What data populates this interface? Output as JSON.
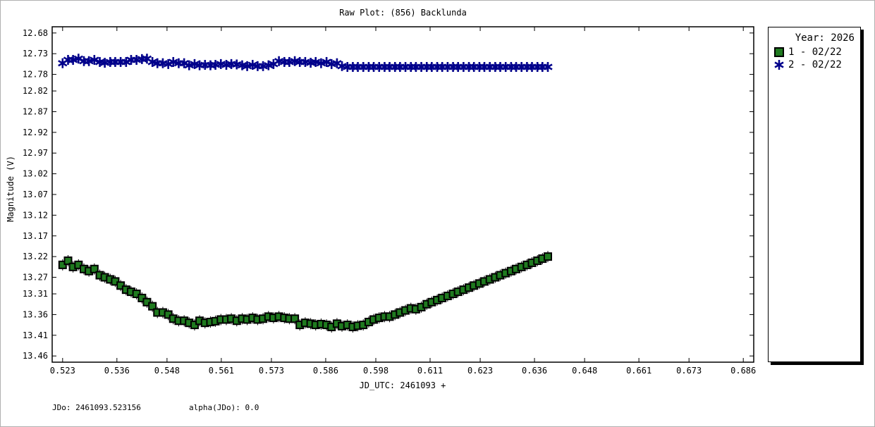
{
  "title": "Raw Plot: (856) Backlunda",
  "footer": {
    "jdo_label": "JDo: 2461093.523156",
    "alpha_label": "alpha(JDo): 0.0"
  },
  "legend": {
    "title": "Year: 2026",
    "entries": [
      "1 - 02/22",
      "2 - 02/22"
    ]
  },
  "chart_data": {
    "type": "scatter",
    "title": "Raw Plot: (856) Backlunda",
    "xlabel": "JD_UTC: 2461093 +",
    "ylabel": "Magnitude (V)",
    "xlim": [
      0.5205,
      0.6885
    ],
    "ylim": [
      12.665,
      13.475
    ],
    "y_inverted": true,
    "x_ticks": [
      "0.523",
      "0.536",
      "0.548",
      "0.561",
      "0.573",
      "0.586",
      "0.598",
      "0.611",
      "0.623",
      "0.636",
      "0.648",
      "0.661",
      "0.673",
      "0.686"
    ],
    "y_ticks": [
      "12.68",
      "12.73",
      "12.78",
      "12.82",
      "12.87",
      "12.92",
      "12.97",
      "13.02",
      "13.07",
      "13.12",
      "13.17",
      "13.22",
      "13.27",
      "13.31",
      "13.36",
      "13.41",
      "13.46"
    ],
    "legend_position": "right",
    "series": [
      {
        "name": "1 - 02/22",
        "marker": "square",
        "color": "#1f7a1f",
        "x": [
          0.523,
          0.5243,
          0.5255,
          0.5268,
          0.5281,
          0.5293,
          0.5306,
          0.5319,
          0.5331,
          0.5344,
          0.5356,
          0.5369,
          0.5382,
          0.5394,
          0.5407,
          0.542,
          0.5432,
          0.5445,
          0.5457,
          0.547,
          0.5483,
          0.5495,
          0.5508,
          0.5521,
          0.5533,
          0.5546,
          0.5558,
          0.5571,
          0.5584,
          0.5596,
          0.5609,
          0.5622,
          0.5634,
          0.5647,
          0.566,
          0.5672,
          0.5685,
          0.5697,
          0.571,
          0.5723,
          0.5735,
          0.5748,
          0.5761,
          0.5773,
          0.5786,
          0.5798,
          0.5811,
          0.5824,
          0.5836,
          0.5849,
          0.5862,
          0.5874,
          0.5887,
          0.5899,
          0.5912,
          0.5925,
          0.5937,
          0.595,
          0.5963,
          0.5975,
          0.5988,
          0.6001,
          0.6013,
          0.6026,
          0.6038,
          0.6051,
          0.6064,
          0.6076,
          0.6089,
          0.6102,
          0.6114,
          0.6127,
          0.6139,
          0.6152,
          0.6165,
          0.6177,
          0.619,
          0.6203,
          0.6215,
          0.6228,
          0.624,
          0.6253,
          0.6266,
          0.6278,
          0.6291,
          0.6304,
          0.6316,
          0.6329,
          0.6342,
          0.6354,
          0.6367,
          0.6379,
          0.6392
        ],
        "y": [
          13.24,
          13.23,
          13.245,
          13.24,
          13.25,
          13.255,
          13.25,
          13.265,
          13.27,
          13.275,
          13.28,
          13.29,
          13.3,
          13.305,
          13.31,
          13.32,
          13.33,
          13.34,
          13.355,
          13.355,
          13.36,
          13.37,
          13.375,
          13.375,
          13.38,
          13.385,
          13.375,
          13.38,
          13.378,
          13.376,
          13.372,
          13.372,
          13.37,
          13.375,
          13.37,
          13.372,
          13.368,
          13.372,
          13.37,
          13.365,
          13.368,
          13.365,
          13.368,
          13.37,
          13.37,
          13.385,
          13.38,
          13.382,
          13.385,
          13.383,
          13.385,
          13.39,
          13.382,
          13.388,
          13.385,
          13.39,
          13.387,
          13.385,
          13.378,
          13.372,
          13.368,
          13.365,
          13.365,
          13.36,
          13.355,
          13.35,
          13.345,
          13.347,
          13.342,
          13.335,
          13.33,
          13.325,
          13.32,
          13.315,
          13.31,
          13.305,
          13.3,
          13.295,
          13.29,
          13.285,
          13.28,
          13.275,
          13.27,
          13.265,
          13.26,
          13.255,
          13.25,
          13.245,
          13.24,
          13.235,
          13.23,
          13.225,
          13.22
        ]
      },
      {
        "name": "2 - 02/22",
        "marker": "asterisk",
        "color": "#00008b",
        "x": [
          0.523,
          0.5243,
          0.5255,
          0.5268,
          0.5281,
          0.5293,
          0.5306,
          0.5319,
          0.5331,
          0.5344,
          0.5356,
          0.5369,
          0.5382,
          0.5394,
          0.5407,
          0.542,
          0.5432,
          0.5445,
          0.5457,
          0.547,
          0.5483,
          0.5495,
          0.5508,
          0.5521,
          0.5533,
          0.5546,
          0.5558,
          0.5571,
          0.5584,
          0.5596,
          0.5609,
          0.5622,
          0.5634,
          0.5647,
          0.566,
          0.5672,
          0.5685,
          0.5697,
          0.571,
          0.5723,
          0.5735,
          0.5748,
          0.5761,
          0.5773,
          0.5786,
          0.5798,
          0.5811,
          0.5824,
          0.5836,
          0.5849,
          0.5862,
          0.5874,
          0.5887,
          0.5899,
          0.5912,
          0.5925,
          0.5937,
          0.595,
          0.5963,
          0.5975,
          0.5988,
          0.6001,
          0.6013,
          0.6026,
          0.6038,
          0.6051,
          0.6064,
          0.6076,
          0.6089,
          0.6102,
          0.6114,
          0.6127,
          0.6139,
          0.6152,
          0.6165,
          0.6177,
          0.619,
          0.6203,
          0.6215,
          0.6228,
          0.624,
          0.6253,
          0.6266,
          0.6278,
          0.6291,
          0.6304,
          0.6316,
          0.6329,
          0.6342,
          0.6354,
          0.6367,
          0.6379,
          0.6392
        ],
        "y": [
          12.753,
          12.745,
          12.745,
          12.742,
          12.748,
          12.748,
          12.745,
          12.75,
          12.752,
          12.75,
          12.75,
          12.75,
          12.75,
          12.745,
          12.745,
          12.743,
          12.742,
          12.75,
          12.753,
          12.753,
          12.755,
          12.75,
          12.753,
          12.753,
          12.758,
          12.755,
          12.758,
          12.757,
          12.758,
          12.757,
          12.755,
          12.757,
          12.755,
          12.756,
          12.758,
          12.76,
          12.757,
          12.76,
          12.76,
          12.758,
          12.755,
          12.748,
          12.75,
          12.75,
          12.748,
          12.75,
          12.75,
          12.752,
          12.75,
          12.753,
          12.75,
          12.755,
          12.753,
          12.76,
          12.762,
          12.762,
          12.762,
          12.762,
          12.762,
          12.762,
          12.762,
          12.762,
          12.762,
          12.762,
          12.762,
          12.762,
          12.762,
          12.762,
          12.762,
          12.762,
          12.762,
          12.762,
          12.762,
          12.762,
          12.762,
          12.762,
          12.762,
          12.762,
          12.762,
          12.762,
          12.762,
          12.762,
          12.762,
          12.762,
          12.762,
          12.762,
          12.762,
          12.762,
          12.762,
          12.762,
          12.762,
          12.762,
          12.762
        ]
      }
    ]
  }
}
